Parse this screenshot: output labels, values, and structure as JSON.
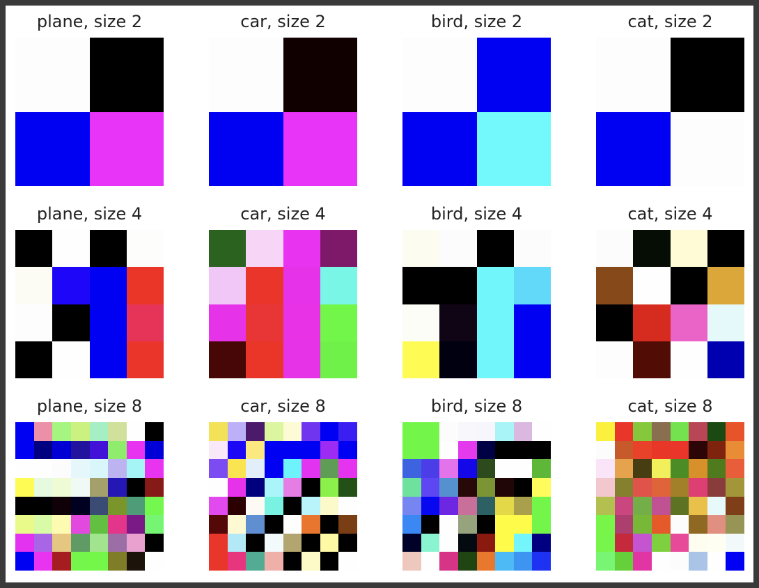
{
  "figure": {
    "panels": [
      {
        "title": "plane, size 2",
        "size": 2,
        "cells": [
          [
            "#fdfdfd",
            "#000000"
          ],
          [
            "#0000f3",
            "#e833f8"
          ]
        ]
      },
      {
        "title": "car, size 2",
        "size": 2,
        "cells": [
          [
            "#fdfdfd",
            "#110000"
          ],
          [
            "#0000f3",
            "#e833f8"
          ]
        ]
      },
      {
        "title": "bird, size 2",
        "size": 2,
        "cells": [
          [
            "#fdfdfd",
            "#0000f3"
          ],
          [
            "#0000f3",
            "#73f8fb"
          ]
        ]
      },
      {
        "title": "cat, size 2",
        "size": 2,
        "cells": [
          [
            "#fdfdfd",
            "#000000"
          ],
          [
            "#0000f3",
            "#fdfdfd"
          ]
        ]
      },
      {
        "title": "plane, size 4",
        "size": 4,
        "cells": [
          [
            "#000000",
            "#fefefe",
            "#000000",
            "#fdfdfb"
          ],
          [
            "#fcfcf4",
            "#1e06f8",
            "#0000f3",
            "#ea3628"
          ],
          [
            "#fdfdfd",
            "#000000",
            "#0000f3",
            "#e63358"
          ],
          [
            "#000000",
            "#fefefe",
            "#0000f3",
            "#ea362a"
          ]
        ]
      },
      {
        "title": "car, size 4",
        "size": 4,
        "cells": [
          [
            "#2b6220",
            "#f6d5f6",
            "#e833f0",
            "#7e1969"
          ],
          [
            "#f1c7f7",
            "#ea362a",
            "#e633ea",
            "#79f6e6"
          ],
          [
            "#e633ea",
            "#e83536",
            "#e733e5",
            "#72f64a"
          ],
          [
            "#480707",
            "#ea3628",
            "#e733e8",
            "#70f14a"
          ]
        ]
      },
      {
        "title": "bird, size 4",
        "size": 4,
        "cells": [
          [
            "#fcfcf0",
            "#fcfcfc",
            "#000000",
            "#fcfcfc"
          ],
          [
            "#000000",
            "#000000",
            "#70f6fb",
            "#63d9fa"
          ],
          [
            "#fdfdf8",
            "#100515",
            "#70f6fb",
            "#0000f3"
          ],
          [
            "#fdfb54",
            "#000010",
            "#70f6fb",
            "#0000f3"
          ]
        ]
      },
      {
        "title": "cat, size 4",
        "size": 4,
        "cells": [
          [
            "#fcfcfc",
            "#050d05",
            "#fefbd6",
            "#000000"
          ],
          [
            "#864a1a",
            "#fefefe",
            "#000000",
            "#dba73b"
          ],
          [
            "#000000",
            "#d62c20",
            "#ea64c8",
            "#e5f9fb"
          ],
          [
            "#fdfdfd",
            "#520c06",
            "#fefefe",
            "#0000b0"
          ]
        ]
      },
      {
        "title": "plane, size 8",
        "size": 8,
        "cells": [
          [
            "#0000f3",
            "#ec8fa9",
            "#a5f580",
            "#cbf180",
            "#a6eec4",
            "#cfe19b",
            "#fefefe",
            "#000000"
          ],
          [
            "#0000f3",
            "#000080",
            "#0000d5",
            "#22139f",
            "#4212d8",
            "#90ec6d",
            "#e833f0",
            "#0000d7"
          ],
          [
            "#fefefe",
            "#fefefe",
            "#fcfcfc",
            "#e5f7fb",
            "#d9f6fa",
            "#bdb3f0",
            "#a6f5f6",
            "#e833f0"
          ],
          [
            "#fefb55",
            "#e6fae0",
            "#eefbd4",
            "#f1f9f4",
            "#a4a06b",
            "#2517b5",
            "#000000",
            "#861a16"
          ],
          [
            "#000000",
            "#000000",
            "#100008",
            "#000020",
            "#3b4c74",
            "#7a952a",
            "#4f9c78",
            "#74f74e"
          ],
          [
            "#eafa8a",
            "#d9faa6",
            "#fdfbb1",
            "#e24adf",
            "#63bf42",
            "#e3368a",
            "#7a1a86",
            "#75f572"
          ],
          [
            "#e433f0",
            "#a866e6",
            "#e6c782",
            "#609a64",
            "#a2e38e",
            "#9b6fa5",
            "#e9a1d0",
            "#000000"
          ],
          [
            "#0000f3",
            "#e833f0",
            "#a51d20",
            "#74f74a",
            "#75f74a",
            "#7f7d28",
            "#1c140a",
            "#fefefe"
          ]
        ]
      },
      {
        "title": "car, size 8",
        "size": 8,
        "cells": [
          [
            "#f3e157",
            "#bcb1f8",
            "#4c1a6b",
            "#dcf6a0",
            "#fdfad6",
            "#6f35ef",
            "#0000f3",
            "#3b1ef2"
          ],
          [
            "#f9e8f8",
            "#1c08f5",
            "#fce880",
            "#0000f3",
            "#0000f3",
            "#0000f3",
            "#9c2bf3",
            "#0000f3"
          ],
          [
            "#7c4bf2",
            "#fbe452",
            "#e2eefa",
            "#0000f3",
            "#6ef2fb",
            "#e233f0",
            "#5f9c55",
            "#e633f0"
          ],
          [
            "#fefefe",
            "#e633e9",
            "#00007c",
            "#a9f5f9",
            "#e57de5",
            "#000000",
            "#8bf049",
            "#225016"
          ],
          [
            "#e24af0",
            "#2a0000",
            "#fdf9f4",
            "#79f2e1",
            "#000000",
            "#b9f4fa",
            "#fcf9ca",
            "#fefefe"
          ],
          [
            "#540808",
            "#fdf9d2",
            "#608fd1",
            "#000000",
            "#fefefe",
            "#e8762f",
            "#000000",
            "#7a3e14"
          ],
          [
            "#e8362a",
            "#b3e9f6",
            "#000000",
            "#f2fafc",
            "#b3a570",
            "#000000",
            "#fdf9a4",
            "#000000"
          ],
          [
            "#e8362a",
            "#e8367e",
            "#54ab94",
            "#f0b0aa",
            "#000000",
            "#fdfac8",
            "#000000",
            "#fefefe"
          ]
        ]
      },
      {
        "title": "bird, size 8",
        "size": 8,
        "cells": [
          [
            "#73f54a",
            "#73f54a",
            "#fcfcfc",
            "#f8f8fc",
            "#f6f6fc",
            "#a9f4f7",
            "#dbb8e0",
            "#fefefe"
          ],
          [
            "#73f54a",
            "#73f54a",
            "#fefefe",
            "#e43aee",
            "#000044",
            "#000000",
            "#000000",
            "#000000"
          ],
          [
            "#3e63e0",
            "#4b3ee8",
            "#e273ea",
            "#1407e8",
            "#2c4a1c",
            "#fefefe",
            "#fefefe",
            "#5fb73a"
          ],
          [
            "#6ee29c",
            "#5e46f2",
            "#5591ce",
            "#280808",
            "#7b9535",
            "#200606",
            "#000000",
            "#fefb5c"
          ],
          [
            "#7685ef",
            "#0808f0",
            "#6d26e1",
            "#c87099",
            "#2c6062",
            "#e2d848",
            "#aa9f4a",
            "#73f54a"
          ],
          [
            "#3b88f5",
            "#000000",
            "#fefefe",
            "#96a37c",
            "#000000",
            "#fefb4a",
            "#fefb4a",
            "#73f54a"
          ],
          [
            "#000028",
            "#8af3cf",
            "#fefefe",
            "#040a10",
            "#8a1a10",
            "#fefb4a",
            "#73f5fb",
            "#000080"
          ],
          [
            "#eec8bc",
            "#fefefe",
            "#d63585",
            "#1f4513",
            "#e8782e",
            "#4ebaf5",
            "#3d95f1",
            "#1d32f2"
          ]
        ]
      },
      {
        "title": "cat, size 8",
        "size": 8,
        "cells": [
          [
            "#fbf03d",
            "#e8362a",
            "#86c83c",
            "#896e50",
            "#74e24e",
            "#b84655",
            "#1a4a12",
            "#e8542a"
          ],
          [
            "#fcfcfc",
            "#c75a2a",
            "#e8422a",
            "#e83627",
            "#e9352a",
            "#2c0606",
            "#7e240e",
            "#e88c36"
          ],
          [
            "#f9e4f8",
            "#e5a34e",
            "#473d12",
            "#f2ef5c",
            "#4c8c26",
            "#d8902a",
            "#4f7a1e",
            "#e85e3a"
          ],
          [
            "#f2c7ce",
            "#858030",
            "#e0534a",
            "#e0643a",
            "#a2802a",
            "#de3f72",
            "#8a3b3b",
            "#a3963a"
          ],
          [
            "#b3c050",
            "#c9477e",
            "#74ae48",
            "#c05294",
            "#5e7224",
            "#e8c04a",
            "#e8f9fb",
            "#7d3e18"
          ],
          [
            "#79f54a",
            "#ac3f6e",
            "#77b838",
            "#e45a2a",
            "#fcfcfc",
            "#8f6822",
            "#e08f80",
            "#979555"
          ],
          [
            "#78f54a",
            "#c52a3c",
            "#c454d0",
            "#7fd03e",
            "#e84a9a",
            "#fefdef",
            "#fefef2",
            "#f3f8fb"
          ],
          [
            "#78f572",
            "#66d03a",
            "#e235a4",
            "#fefefe",
            "#fcfcfc",
            "#a9c4e6",
            "#fefefe",
            "#0000f3"
          ]
        ]
      }
    ]
  }
}
